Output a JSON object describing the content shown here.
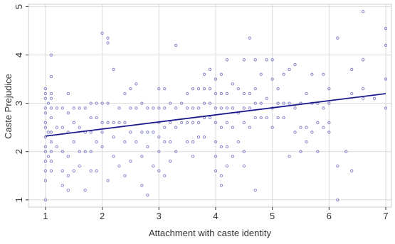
{
  "chart_data": {
    "type": "scatter",
    "title": "",
    "xlabel": "Attachment with caste identity",
    "ylabel": "Caste Prejudice",
    "xlim": [
      0.7,
      7.1
    ],
    "ylim": [
      0.85,
      5.05
    ],
    "x_ticks": [
      1,
      2,
      3,
      4,
      5,
      6,
      7
    ],
    "y_ticks": [
      1,
      2,
      3,
      4,
      5
    ],
    "x_tick_labels": [
      "1",
      "2",
      "3",
      "4",
      "5",
      "6",
      "7"
    ],
    "y_tick_labels": [
      "1",
      "2",
      "3",
      "4",
      "5"
    ],
    "grid": true,
    "legend": "none",
    "colors": {
      "points": "#7d7dc8",
      "fit_line": "#1a1a8c",
      "grid": "#d9d9d9",
      "axis": "#333333"
    },
    "fit_line": {
      "x": [
        1,
        7
      ],
      "y": [
        2.32,
        3.2
      ]
    },
    "points": [
      [
        1.0,
        3.3
      ],
      [
        1.0,
        3.2
      ],
      [
        1.0,
        3.1
      ],
      [
        1.0,
        2.9
      ],
      [
        1.0,
        2.8
      ],
      [
        1.0,
        2.6
      ],
      [
        1.0,
        2.5
      ],
      [
        1.0,
        2.3
      ],
      [
        1.0,
        2.1
      ],
      [
        1.0,
        2.0
      ],
      [
        1.0,
        1.8
      ],
      [
        1.0,
        1.6
      ],
      [
        1.0,
        1.4
      ],
      [
        1.0,
        1.0
      ],
      [
        1.05,
        3.0
      ],
      [
        1.05,
        2.4
      ],
      [
        1.05,
        1.9
      ],
      [
        1.1,
        4.0
      ],
      [
        1.1,
        3.55
      ],
      [
        1.1,
        3.2
      ],
      [
        1.1,
        3.1
      ],
      [
        1.1,
        2.9
      ],
      [
        1.1,
        2.7
      ],
      [
        1.1,
        2.4
      ],
      [
        1.1,
        2.2
      ],
      [
        1.1,
        2.0
      ],
      [
        1.1,
        1.8
      ],
      [
        1.1,
        1.6
      ],
      [
        1.2,
        2.9
      ],
      [
        1.2,
        2.5
      ],
      [
        1.2,
        2.1
      ],
      [
        1.3,
        2.9
      ],
      [
        1.3,
        2.5
      ],
      [
        1.3,
        2.0
      ],
      [
        1.3,
        1.6
      ],
      [
        1.3,
        1.3
      ],
      [
        1.4,
        3.2
      ],
      [
        1.4,
        2.8
      ],
      [
        1.4,
        2.4
      ],
      [
        1.4,
        1.9
      ],
      [
        1.4,
        1.5
      ],
      [
        1.4,
        1.2
      ],
      [
        1.5,
        2.9
      ],
      [
        1.5,
        2.6
      ],
      [
        1.5,
        2.2
      ],
      [
        1.5,
        1.6
      ],
      [
        1.6,
        2.9
      ],
      [
        1.6,
        2.5
      ],
      [
        1.6,
        2.0
      ],
      [
        1.6,
        1.7
      ],
      [
        1.7,
        2.9
      ],
      [
        1.7,
        2.4
      ],
      [
        1.7,
        2.0
      ],
      [
        1.7,
        1.2
      ],
      [
        1.8,
        3.0
      ],
      [
        1.8,
        2.7
      ],
      [
        1.8,
        2.4
      ],
      [
        1.8,
        2.0
      ],
      [
        1.8,
        1.6
      ],
      [
        1.9,
        3.0
      ],
      [
        1.9,
        2.7
      ],
      [
        1.9,
        2.2
      ],
      [
        1.9,
        1.6
      ],
      [
        2.0,
        4.45
      ],
      [
        2.0,
        3.0
      ],
      [
        2.0,
        2.6
      ],
      [
        2.0,
        2.4
      ],
      [
        2.0,
        2.1
      ],
      [
        2.1,
        4.35
      ],
      [
        2.1,
        4.25
      ],
      [
        2.1,
        3.0
      ],
      [
        2.1,
        2.6
      ],
      [
        2.1,
        1.4
      ],
      [
        2.2,
        3.7
      ],
      [
        2.2,
        2.6
      ],
      [
        2.2,
        2.3
      ],
      [
        2.2,
        1.9
      ],
      [
        2.3,
        2.9
      ],
      [
        2.3,
        2.6
      ],
      [
        2.3,
        1.7
      ],
      [
        2.4,
        3.2
      ],
      [
        2.4,
        2.6
      ],
      [
        2.4,
        2.2
      ],
      [
        2.4,
        1.5
      ],
      [
        2.5,
        3.3
      ],
      [
        2.5,
        2.9
      ],
      [
        2.5,
        2.4
      ],
      [
        2.5,
        1.8
      ],
      [
        2.6,
        3.4
      ],
      [
        2.6,
        2.9
      ],
      [
        2.6,
        2.2
      ],
      [
        2.7,
        3.0
      ],
      [
        2.7,
        2.4
      ],
      [
        2.7,
        1.9
      ],
      [
        2.7,
        1.3
      ],
      [
        2.8,
        2.9
      ],
      [
        2.8,
        2.4
      ],
      [
        2.8,
        2.1
      ],
      [
        2.8,
        1.1
      ],
      [
        2.9,
        2.9
      ],
      [
        2.9,
        2.4
      ],
      [
        2.9,
        1.7
      ],
      [
        3.0,
        3.3
      ],
      [
        3.0,
        2.9
      ],
      [
        3.0,
        2.6
      ],
      [
        3.0,
        2.3
      ],
      [
        3.0,
        2.0
      ],
      [
        3.0,
        1.6
      ],
      [
        3.1,
        3.3
      ],
      [
        3.1,
        2.9
      ],
      [
        3.1,
        2.5
      ],
      [
        3.1,
        2.2
      ],
      [
        3.1,
        1.5
      ],
      [
        3.2,
        3.0
      ],
      [
        3.2,
        2.6
      ],
      [
        3.2,
        2.2
      ],
      [
        3.2,
        1.8
      ],
      [
        3.3,
        4.2
      ],
      [
        3.3,
        2.9
      ],
      [
        3.3,
        2.5
      ],
      [
        3.3,
        2.0
      ],
      [
        3.4,
        3.0
      ],
      [
        3.4,
        2.6
      ],
      [
        3.5,
        3.2
      ],
      [
        3.5,
        2.9
      ],
      [
        3.5,
        2.6
      ],
      [
        3.5,
        2.2
      ],
      [
        3.6,
        3.3
      ],
      [
        3.6,
        2.9
      ],
      [
        3.6,
        2.6
      ],
      [
        3.6,
        2.2
      ],
      [
        3.6,
        1.9
      ],
      [
        3.7,
        3.3
      ],
      [
        3.7,
        2.9
      ],
      [
        3.7,
        2.6
      ],
      [
        3.7,
        2.3
      ],
      [
        3.8,
        3.6
      ],
      [
        3.8,
        3.3
      ],
      [
        3.8,
        3.0
      ],
      [
        3.8,
        2.7
      ],
      [
        3.8,
        2.3
      ],
      [
        3.9,
        3.7
      ],
      [
        3.9,
        3.3
      ],
      [
        3.9,
        3.0
      ],
      [
        3.9,
        2.7
      ],
      [
        4.0,
        3.5
      ],
      [
        4.0,
        3.2
      ],
      [
        4.0,
        2.9
      ],
      [
        4.0,
        2.6
      ],
      [
        4.0,
        2.2
      ],
      [
        4.0,
        1.9
      ],
      [
        4.0,
        1.6
      ],
      [
        4.1,
        3.6
      ],
      [
        4.1,
        3.2
      ],
      [
        4.1,
        2.9
      ],
      [
        4.1,
        2.5
      ],
      [
        4.1,
        2.1
      ],
      [
        4.1,
        1.5
      ],
      [
        4.1,
        1.3
      ],
      [
        4.2,
        3.9
      ],
      [
        4.2,
        3.2
      ],
      [
        4.2,
        2.9
      ],
      [
        4.2,
        2.6
      ],
      [
        4.2,
        2.1
      ],
      [
        4.2,
        1.7
      ],
      [
        4.3,
        3.4
      ],
      [
        4.3,
        2.9
      ],
      [
        4.3,
        2.5
      ],
      [
        4.3,
        1.9
      ],
      [
        4.4,
        3.3
      ],
      [
        4.4,
        2.8
      ],
      [
        4.4,
        2.2
      ],
      [
        4.5,
        3.9
      ],
      [
        4.5,
        3.2
      ],
      [
        4.5,
        2.9
      ],
      [
        4.5,
        2.6
      ],
      [
        4.5,
        2.0
      ],
      [
        4.5,
        1.7
      ],
      [
        4.6,
        4.35
      ],
      [
        4.6,
        3.2
      ],
      [
        4.6,
        2.9
      ],
      [
        4.6,
        2.5
      ],
      [
        4.7,
        3.9
      ],
      [
        4.7,
        3.3
      ],
      [
        4.7,
        3.0
      ],
      [
        4.7,
        2.7
      ],
      [
        4.7,
        1.2
      ],
      [
        4.8,
        3.6
      ],
      [
        4.8,
        3.0
      ],
      [
        4.8,
        2.7
      ],
      [
        4.9,
        3.9
      ],
      [
        4.9,
        3.1
      ],
      [
        4.9,
        2.7
      ],
      [
        5.0,
        3.9
      ],
      [
        5.0,
        3.5
      ],
      [
        5.0,
        2.9
      ],
      [
        5.0,
        2.5
      ],
      [
        5.1,
        3.3
      ],
      [
        5.1,
        3.0
      ],
      [
        5.1,
        2.7
      ],
      [
        5.2,
        3.6
      ],
      [
        5.2,
        3.0
      ],
      [
        5.2,
        2.7
      ],
      [
        5.3,
        3.7
      ],
      [
        5.3,
        3.0
      ],
      [
        5.3,
        1.9
      ],
      [
        5.4,
        3.8
      ],
      [
        5.4,
        2.9
      ],
      [
        5.4,
        2.4
      ],
      [
        5.5,
        3.0
      ],
      [
        5.5,
        2.5
      ],
      [
        5.5,
        2.0
      ],
      [
        5.6,
        3.2
      ],
      [
        5.6,
        2.5
      ],
      [
        5.6,
        2.2
      ],
      [
        5.7,
        3.6
      ],
      [
        5.7,
        3.0
      ],
      [
        5.7,
        2.4
      ],
      [
        5.8,
        3.0
      ],
      [
        5.8,
        2.6
      ],
      [
        5.8,
        2.0
      ],
      [
        5.9,
        3.6
      ],
      [
        5.9,
        2.9
      ],
      [
        5.9,
        2.5
      ],
      [
        6.0,
        3.3
      ],
      [
        6.0,
        3.0
      ],
      [
        6.0,
        2.6
      ],
      [
        6.0,
        2.4
      ],
      [
        6.15,
        4.35
      ],
      [
        6.15,
        1.7
      ],
      [
        6.15,
        1.0
      ],
      [
        6.3,
        2.0
      ],
      [
        6.4,
        3.7
      ],
      [
        6.4,
        3.2
      ],
      [
        6.4,
        1.6
      ],
      [
        6.6,
        4.9
      ],
      [
        6.6,
        3.9
      ],
      [
        6.6,
        3.3
      ],
      [
        6.6,
        3.1
      ],
      [
        6.8,
        3.1
      ],
      [
        7.0,
        4.55
      ],
      [
        7.0,
        4.2
      ],
      [
        7.0,
        3.5
      ],
      [
        7.0,
        2.9
      ]
    ]
  }
}
